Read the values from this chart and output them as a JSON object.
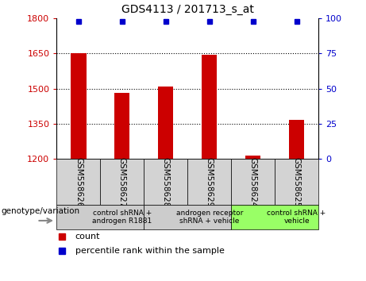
{
  "title": "GDS4113 / 201713_s_at",
  "samples": [
    "GSM558626",
    "GSM558627",
    "GSM558628",
    "GSM558629",
    "GSM558624",
    "GSM558625"
  ],
  "bar_values": [
    1650,
    1480,
    1510,
    1645,
    1215,
    1365
  ],
  "percentile_values": [
    98,
    98,
    98,
    98,
    98,
    98
  ],
  "ylim_left": [
    1200,
    1800
  ],
  "ylim_right": [
    0,
    100
  ],
  "yticks_left": [
    1200,
    1350,
    1500,
    1650,
    1800
  ],
  "yticks_right": [
    0,
    25,
    50,
    75,
    100
  ],
  "bar_color": "#cc0000",
  "percentile_color": "#0000cc",
  "bar_bottom": 1200,
  "groups": [
    {
      "label": "control shRNA +\nandrogen R1881",
      "start": 0,
      "end": 2,
      "color": "#cccccc"
    },
    {
      "label": "androgen receptor\nshRNA + vehicle",
      "start": 2,
      "end": 4,
      "color": "#cccccc"
    },
    {
      "label": "control shRNA +\nvehicle",
      "start": 4,
      "end": 6,
      "color": "#99ff66"
    }
  ],
  "legend_count_label": "count",
  "legend_percentile_label": "percentile rank within the sample",
  "genotype_label": "genotype/variation",
  "tick_label_color_left": "#cc0000",
  "tick_label_color_right": "#0000cc"
}
